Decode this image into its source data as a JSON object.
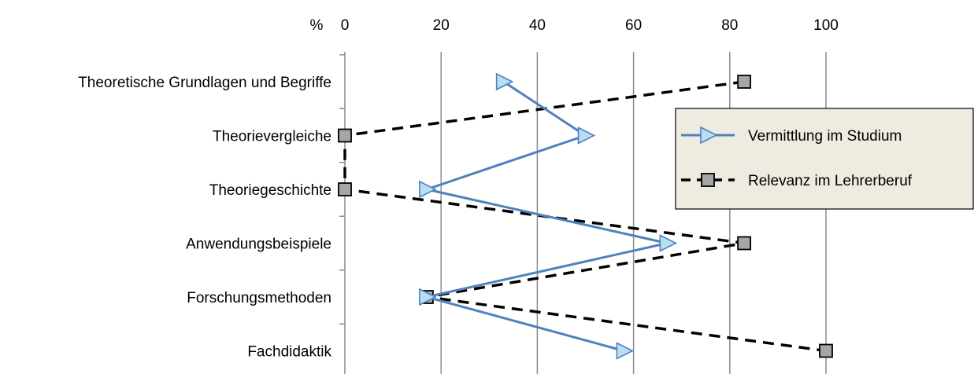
{
  "chart_data": {
    "type": "line",
    "orientation": "horizontal-value-axis",
    "x_unit_label": "%",
    "xlim": [
      0,
      100
    ],
    "x_ticks": [
      0,
      20,
      40,
      60,
      80,
      100
    ],
    "categories": [
      "Theoretische Grundlagen und Begriffe",
      "Theorievergleiche",
      "Theoriegeschichte",
      "Anwendungsbeispiele",
      "Forschungsmethoden",
      "Fachdidaktik"
    ],
    "series": [
      {
        "name": "Vermittlung im Studium",
        "values": [
          33,
          50,
          17,
          67,
          17,
          58
        ],
        "color": "#4F81BD",
        "marker": "triangle-right",
        "marker_fill": "#B9DDF1",
        "line_style": "solid"
      },
      {
        "name": "Relevanz im Lehrerberuf",
        "values": [
          83,
          0,
          0,
          83,
          17,
          100
        ],
        "color": "#000000",
        "marker": "square",
        "marker_fill": "#A6A6A6",
        "line_style": "dashed"
      }
    ],
    "grid": "vertical",
    "legend_position": "right",
    "legend_background": "#EEECE1"
  }
}
